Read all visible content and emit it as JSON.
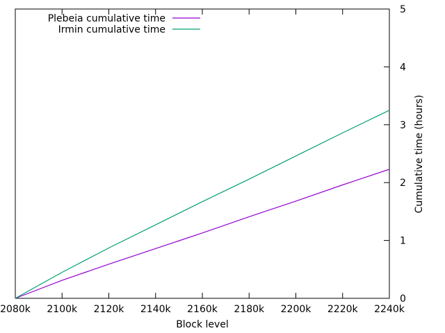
{
  "chart_data": {
    "type": "line",
    "xlabel": "Block level",
    "ylabel": "Cumulative time (hours)",
    "xlim": [
      2080,
      2240
    ],
    "ylim": [
      0,
      5
    ],
    "x_unit": "k",
    "x_ticks": [
      "2080k",
      "2100k",
      "2120k",
      "2140k",
      "2160k",
      "2180k",
      "2200k",
      "2220k",
      "2240k"
    ],
    "x_tick_values": [
      2080,
      2100,
      2120,
      2140,
      2160,
      2180,
      2200,
      2220,
      2240
    ],
    "y_ticks": [
      "0",
      "1",
      "2",
      "3",
      "4",
      "5"
    ],
    "y_tick_values": [
      0,
      1,
      2,
      3,
      4,
      5
    ],
    "y_axis_side": "right",
    "grid": false,
    "legend_position": "top-left",
    "series": [
      {
        "name": "Plebeia cumulative time",
        "color": "#9400d3",
        "x": [
          2080,
          2100,
          2120,
          2140,
          2160,
          2180,
          2200,
          2220,
          2240
        ],
        "y": [
          0,
          0.31,
          0.59,
          0.86,
          1.13,
          1.41,
          1.68,
          1.96,
          2.23
        ]
      },
      {
        "name": "Irmin cumulative time",
        "color": "#009e73",
        "x": [
          2080,
          2100,
          2120,
          2140,
          2160,
          2180,
          2200,
          2220,
          2240
        ],
        "y": [
          0,
          0.45,
          0.87,
          1.27,
          1.67,
          2.06,
          2.46,
          2.86,
          3.25
        ]
      }
    ]
  }
}
